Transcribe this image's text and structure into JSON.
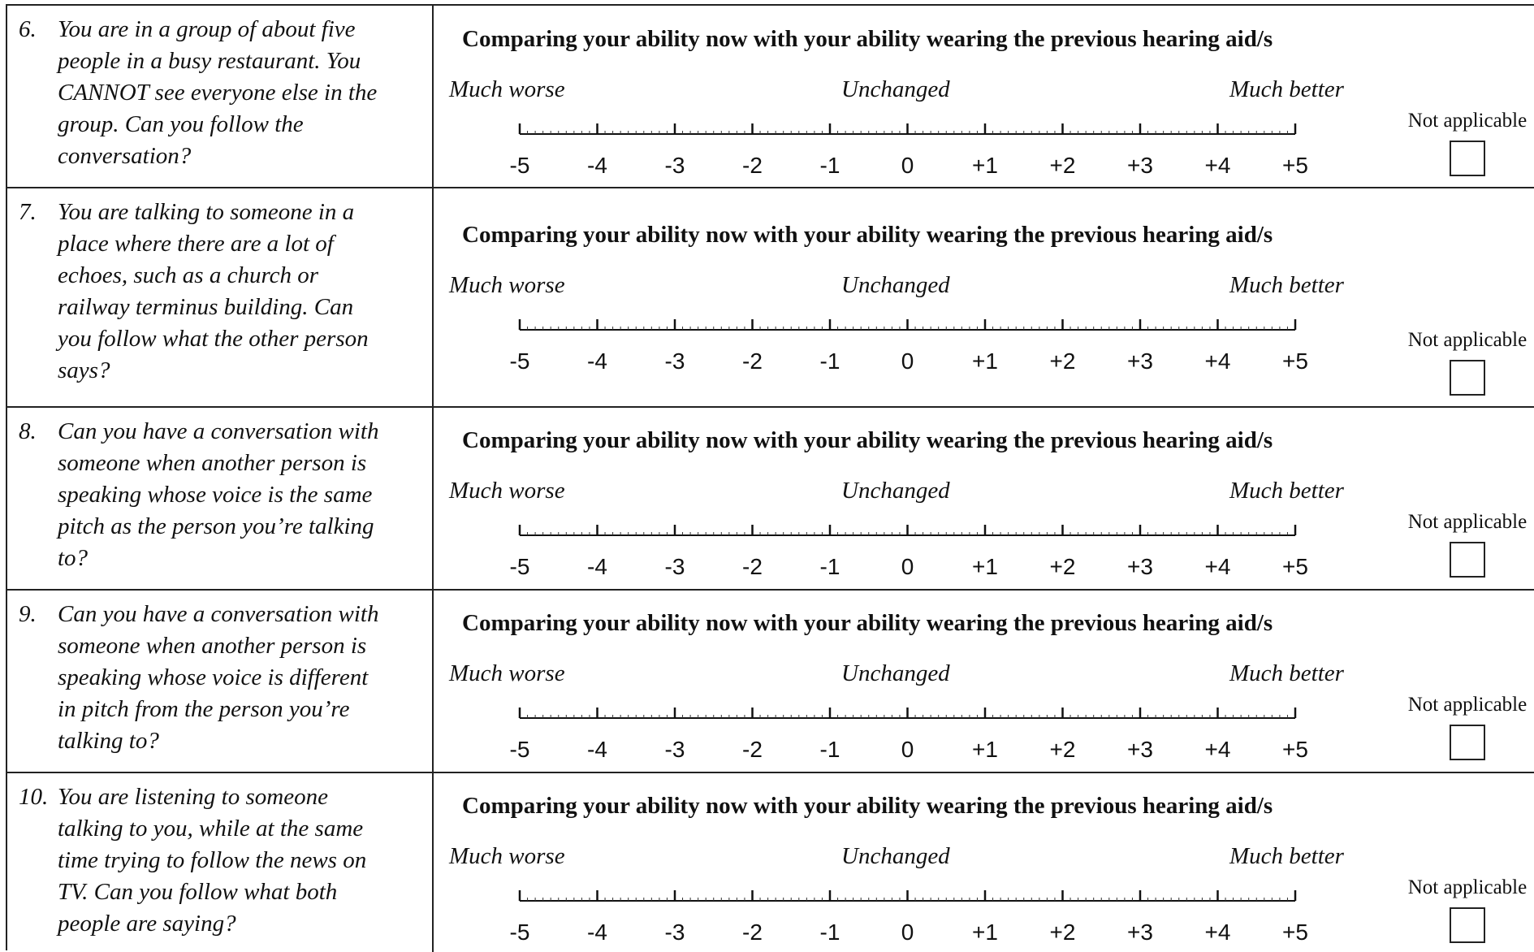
{
  "scale": {
    "title": "Comparing your ability now with your ability wearing the previous hearing aid/s",
    "anchor_left": "Much worse",
    "anchor_mid": "Unchanged",
    "anchor_right": "Much better",
    "values": [
      "-5",
      "-4",
      "-3",
      "-2",
      "-1",
      "0",
      "+1",
      "+2",
      "+3",
      "+4",
      "+5"
    ],
    "not_applicable": "Not applicable"
  },
  "questions": [
    {
      "number": "6.",
      "text": "You are in a group of about five\npeople in a busy restaurant. You\nCANNOT see everyone else in the\ngroup.  Can you follow the\nconversation?"
    },
    {
      "number": "7.",
      "text": "You are talking to someone in a\nplace where there are a lot of\nechoes, such as a church or\nrailway terminus building. Can\nyou follow what the other person\nsays?"
    },
    {
      "number": "8.",
      "text": "Can you have a conversation with\nsomeone when another person is\nspeaking whose voice is the same\npitch as the person you’re talking\nto?"
    },
    {
      "number": "9.",
      "text": "Can you have a conversation with\nsomeone when another person is\nspeaking whose voice is different\nin pitch from the person you’re\ntalking to?"
    },
    {
      "number": "10.",
      "text": "You are listening to someone\ntalking to you, while at the same\ntime trying to follow the news on\nTV. Can you follow what both\npeople are saying?"
    }
  ]
}
